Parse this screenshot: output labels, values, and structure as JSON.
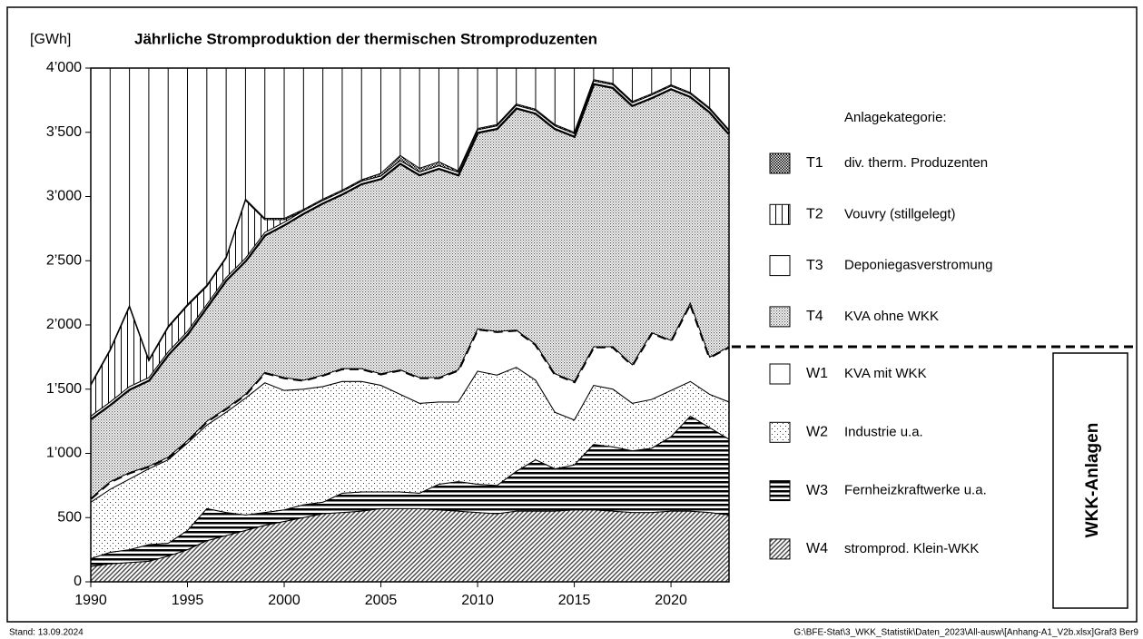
{
  "chart_data": {
    "type": "stacked_area",
    "title": "Jährliche Stromproduktion der thermischen Stromproduzenten",
    "y_label": "[GWh]",
    "legend_title": "Anlagekategorie:",
    "group_label": "WKK-Anlagen",
    "footer_left": "Stand:  13.09.2024",
    "footer_right": "G:\\BFE-Stat\\3_WKK_Statistik\\Daten_2023\\All-ausw\\[Anhang-A1_V2b.xlsx]Graf3   Ber9",
    "x": [
      1990,
      1991,
      1992,
      1993,
      1994,
      1995,
      1996,
      1997,
      1998,
      1999,
      2000,
      2001,
      2002,
      2003,
      2004,
      2005,
      2006,
      2007,
      2008,
      2009,
      2010,
      2011,
      2012,
      2013,
      2014,
      2015,
      2016,
      2017,
      2018,
      2019,
      2020,
      2021,
      2022,
      2023
    ],
    "xlim": [
      1990,
      2023
    ],
    "xticks": [
      1990,
      1995,
      2000,
      2005,
      2010,
      2015,
      2020
    ],
    "ylim": [
      0,
      4000
    ],
    "yticks": [
      0,
      500,
      {
        "value": 1000,
        "label": "1’000"
      },
      {
        "value": 1500,
        "label": "1’500"
      },
      {
        "value": 2000,
        "label": "2’000"
      },
      {
        "value": 2500,
        "label": "2’500"
      },
      {
        "value": 3000,
        "label": "3’000"
      },
      {
        "value": 3500,
        "label": "3’500"
      },
      {
        "value": 4000,
        "label": "4’000"
      }
    ],
    "series": [
      {
        "code": "W4",
        "name": "stromprod. Klein-WKK",
        "pattern": "diagonal",
        "values": [
          120,
          140,
          150,
          160,
          200,
          250,
          320,
          360,
          400,
          440,
          470,
          500,
          530,
          540,
          550,
          570,
          570,
          570,
          560,
          550,
          540,
          530,
          550,
          550,
          550,
          560,
          560,
          550,
          540,
          540,
          550,
          550,
          540,
          520
        ]
      },
      {
        "code": "W3",
        "name": "Fernheizkraftwerke u.a.",
        "pattern": "horizontal",
        "values": [
          60,
          90,
          100,
          130,
          100,
          150,
          250,
          180,
          120,
          100,
          90,
          100,
          90,
          150,
          150,
          130,
          130,
          120,
          200,
          230,
          220,
          220,
          310,
          400,
          330,
          350,
          510,
          500,
          480,
          500,
          580,
          740,
          660,
          590
        ]
      },
      {
        "code": "W2",
        "name": "Industrie u.a.",
        "pattern": "dots",
        "values": [
          440,
          490,
          550,
          590,
          650,
          680,
          650,
          780,
          910,
          1010,
          930,
          900,
          900,
          870,
          860,
          830,
          760,
          700,
          640,
          620,
          880,
          860,
          810,
          620,
          440,
          350,
          460,
          450,
          370,
          380,
          360,
          270,
          260,
          290
        ]
      },
      {
        "code": "W1",
        "name": "KVA mit WKK",
        "pattern": "white",
        "edge": "dashed",
        "values": [
          30,
          60,
          50,
          20,
          20,
          20,
          30,
          30,
          30,
          80,
          100,
          70,
          90,
          100,
          100,
          90,
          190,
          200,
          190,
          250,
          330,
          340,
          290,
          280,
          300,
          300,
          300,
          330,
          300,
          520,
          390,
          610,
          290,
          430
        ]
      },
      {
        "code": "T4",
        "name": "KVA ohne WKK",
        "pattern": "dense",
        "edge": "thick",
        "values": [
          620,
          600,
          650,
          670,
          800,
          830,
          890,
          1000,
          1040,
          1070,
          1190,
          1300,
          1340,
          1360,
          1440,
          1520,
          1610,
          1580,
          1630,
          1520,
          1530,
          1580,
          1730,
          1800,
          1910,
          1910,
          2050,
          2020,
          2020,
          1830,
          1960,
          1610,
          1910,
          1660
        ]
      },
      {
        "code": "T3",
        "name": "Deponiegasverstromung",
        "pattern": "white",
        "values": [
          20,
          20,
          20,
          20,
          20,
          20,
          20,
          20,
          20,
          20,
          20,
          20,
          20,
          20,
          20,
          20,
          20,
          20,
          20,
          20,
          20,
          20,
          20,
          20,
          20,
          20,
          20,
          20,
          20,
          20,
          20,
          20,
          20,
          20
        ]
      },
      {
        "code": "T2",
        "name": "Vouvry (stillgelegt)",
        "pattern": "vertical",
        "values": [
          240,
          400,
          620,
          130,
          190,
          200,
          140,
          150,
          450,
          100,
          20,
          0,
          0,
          0,
          0,
          0,
          0,
          0,
          0,
          0,
          0,
          0,
          0,
          0,
          0,
          0,
          0,
          0,
          0,
          0,
          0,
          0,
          0,
          0
        ]
      },
      {
        "code": "T1",
        "name": "div. therm. Produzenten",
        "pattern": "checker",
        "values": [
          10,
          10,
          10,
          10,
          10,
          10,
          10,
          10,
          10,
          10,
          10,
          10,
          10,
          10,
          10,
          20,
          40,
          30,
          30,
          10,
          10,
          10,
          10,
          10,
          10,
          10,
          10,
          10,
          10,
          10,
          10,
          10,
          10,
          10
        ]
      }
    ]
  }
}
